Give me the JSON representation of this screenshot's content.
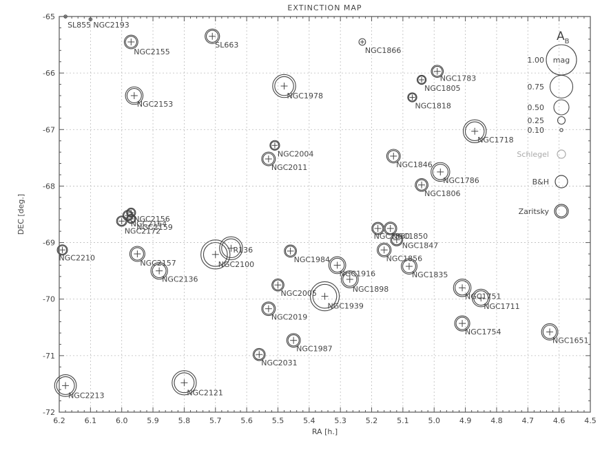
{
  "chart_data": {
    "type": "scatter",
    "title": "EXTINCTION MAP",
    "xlabel": "RA [h.]",
    "ylabel": "DEC [deg.]",
    "xlim": [
      6.2,
      4.5
    ],
    "ylim": [
      -72,
      -65
    ],
    "xticks": [
      "6.2",
      "6.1",
      "6.0",
      "5.9",
      "5.8",
      "5.7",
      "5.6",
      "5.5",
      "5.4",
      "5.3",
      "5.2",
      "5.1",
      "5.0",
      "4.9",
      "4.8",
      "4.7",
      "4.6",
      "4.5"
    ],
    "yticks": [
      "-65",
      "-66",
      "-67",
      "-68",
      "-69",
      "-70",
      "-71",
      "-72"
    ],
    "grid": true,
    "legend": {
      "placement": "right",
      "title_main": "A",
      "title_sub": "B",
      "size_entries": [
        {
          "label": "1.00",
          "value": 1.0,
          "inner": "mag"
        },
        {
          "label": "0.75",
          "value": 0.75
        },
        {
          "label": "0.50",
          "value": 0.5
        },
        {
          "label": "0.25",
          "value": 0.25
        },
        {
          "label": "0.10",
          "value": 0.1
        }
      ],
      "method_entries": [
        {
          "label": "Schlegel",
          "color": "#aaaaaa"
        },
        {
          "label": "B&H",
          "color": "#444444"
        },
        {
          "label": "Zaritsky",
          "color": "#444444"
        }
      ]
    },
    "points": [
      {
        "name": "SL855",
        "ra": 6.18,
        "dec": -65.0,
        "av": 0.1,
        "lx": 3,
        "ly": 16
      },
      {
        "name": "NGC2193",
        "ra": 6.1,
        "dec": -65.05,
        "av": 0.1,
        "lx": 4,
        "ly": 12
      },
      {
        "name": "NGC2155",
        "ra": 5.97,
        "dec": -65.45,
        "av": 0.45,
        "lx": 4,
        "ly": 18
      },
      {
        "name": "SL663",
        "ra": 5.71,
        "dec": -65.35,
        "av": 0.48,
        "lx": 4,
        "ly": 16
      },
      {
        "name": "NGC1866",
        "ra": 5.23,
        "dec": -65.45,
        "av": 0.22,
        "lx": 4,
        "ly": 16
      },
      {
        "name": "NGC1783",
        "ra": 4.99,
        "dec": -65.97,
        "av": 0.4,
        "lx": 4,
        "ly": 14
      },
      {
        "name": "NGC1805",
        "ra": 5.04,
        "dec": -66.12,
        "av": 0.3,
        "lx": 4,
        "ly": 16
      },
      {
        "name": "NGC1978",
        "ra": 5.48,
        "dec": -66.23,
        "av": 0.76,
        "lx": 4,
        "ly": 18
      },
      {
        "name": "NGC2153",
        "ra": 5.96,
        "dec": -66.4,
        "av": 0.58,
        "lx": 4,
        "ly": 16
      },
      {
        "name": "NGC1818",
        "ra": 5.07,
        "dec": -66.43,
        "av": 0.3,
        "lx": 4,
        "ly": 16
      },
      {
        "name": "NGC1718",
        "ra": 4.87,
        "dec": -67.03,
        "av": 0.76,
        "lx": 4,
        "ly": 16
      },
      {
        "name": "NGC2004",
        "ra": 5.51,
        "dec": -67.28,
        "av": 0.32,
        "lx": 4,
        "ly": 16
      },
      {
        "name": "NGC2011",
        "ra": 5.53,
        "dec": -67.52,
        "av": 0.45,
        "lx": 4,
        "ly": 16
      },
      {
        "name": "NGC1846",
        "ra": 5.13,
        "dec": -67.47,
        "av": 0.45,
        "lx": 4,
        "ly": 16
      },
      {
        "name": "NGC1786",
        "ra": 4.98,
        "dec": -67.75,
        "av": 0.62,
        "lx": 4,
        "ly": 16
      },
      {
        "name": "NGC1806",
        "ra": 5.04,
        "dec": -67.98,
        "av": 0.42,
        "lx": 4,
        "ly": 16
      },
      {
        "name": "NGC2156",
        "ra": 5.97,
        "dec": -68.47,
        "av": 0.3,
        "lx": 4,
        "ly": 13
      },
      {
        "name": "NGC2164",
        "ra": 5.98,
        "dec": -68.52,
        "av": 0.34,
        "lx": 4,
        "ly": 16
      },
      {
        "name": "NGC2172",
        "ra": 6.0,
        "dec": -68.62,
        "av": 0.34,
        "lx": 4,
        "ly": 18
      },
      {
        "name": "NGC2159",
        "ra": 5.97,
        "dec": -68.58,
        "av": 0.3,
        "lx": 8,
        "ly": 16
      },
      {
        "name": "NGC1860",
        "ra": 5.18,
        "dec": -68.75,
        "av": 0.4,
        "lx": -6,
        "ly": 15
      },
      {
        "name": "NGC1850",
        "ra": 5.14,
        "dec": -68.75,
        "av": 0.42,
        "lx": 2,
        "ly": 15
      },
      {
        "name": "NGC1847",
        "ra": 5.12,
        "dec": -68.95,
        "av": 0.4,
        "lx": 8,
        "ly": 12
      },
      {
        "name": "NGC2210",
        "ra": 6.19,
        "dec": -69.13,
        "av": 0.34,
        "lx": -5,
        "ly": 15
      },
      {
        "name": "NGC2157",
        "ra": 5.95,
        "dec": -69.2,
        "av": 0.5,
        "lx": 4,
        "ly": 17
      },
      {
        "name": "NGC2100",
        "ra": 5.7,
        "dec": -69.21,
        "av": 0.96,
        "lx": 4,
        "ly": 18
      },
      {
        "name": "R136",
        "ra": 5.65,
        "dec": -69.1,
        "av": 0.76,
        "lx": 3,
        "ly": 6
      },
      {
        "name": "NGC1984",
        "ra": 5.46,
        "dec": -69.15,
        "av": 0.4,
        "lx": 5,
        "ly": 16
      },
      {
        "name": "NGC1856",
        "ra": 5.16,
        "dec": -69.13,
        "av": 0.46,
        "lx": 3,
        "ly": 16
      },
      {
        "name": "NGC2136",
        "ra": 5.88,
        "dec": -69.5,
        "av": 0.55,
        "lx": 4,
        "ly": 16
      },
      {
        "name": "NGC1916",
        "ra": 5.31,
        "dec": -69.4,
        "av": 0.56,
        "lx": 3,
        "ly": 16
      },
      {
        "name": "NGC1835",
        "ra": 5.08,
        "dec": -69.42,
        "av": 0.52,
        "lx": 4,
        "ly": 16
      },
      {
        "name": "NGC1898",
        "ra": 5.27,
        "dec": -69.65,
        "av": 0.56,
        "lx": 4,
        "ly": 18
      },
      {
        "name": "NGC2005",
        "ra": 5.5,
        "dec": -69.75,
        "av": 0.4,
        "lx": 4,
        "ly": 16
      },
      {
        "name": "NGC1939",
        "ra": 5.35,
        "dec": -69.95,
        "av": 0.96,
        "lx": 4,
        "ly": 18
      },
      {
        "name": "NGC1751",
        "ra": 4.91,
        "dec": -69.8,
        "av": 0.58,
        "lx": 4,
        "ly": 16
      },
      {
        "name": "NGC1711",
        "ra": 4.85,
        "dec": -69.98,
        "av": 0.58,
        "lx": 4,
        "ly": 16
      },
      {
        "name": "NGC2019",
        "ra": 5.53,
        "dec": -70.17,
        "av": 0.45,
        "lx": 4,
        "ly": 16
      },
      {
        "name": "NGC1754",
        "ra": 4.91,
        "dec": -70.43,
        "av": 0.5,
        "lx": 4,
        "ly": 16
      },
      {
        "name": "NGC1651",
        "ra": 4.63,
        "dec": -70.58,
        "av": 0.54,
        "lx": 4,
        "ly": 16
      },
      {
        "name": "NGC1987",
        "ra": 5.45,
        "dec": -70.73,
        "av": 0.45,
        "lx": 4,
        "ly": 16
      },
      {
        "name": "NGC2031",
        "ra": 5.56,
        "dec": -70.98,
        "av": 0.4,
        "lx": 3,
        "ly": 16
      },
      {
        "name": "NGC2213",
        "ra": 6.18,
        "dec": -71.53,
        "av": 0.72,
        "lx": 4,
        "ly": 18
      },
      {
        "name": "NGC2121",
        "ra": 5.8,
        "dec": -71.48,
        "av": 0.8,
        "lx": 4,
        "ly": 18
      }
    ]
  }
}
